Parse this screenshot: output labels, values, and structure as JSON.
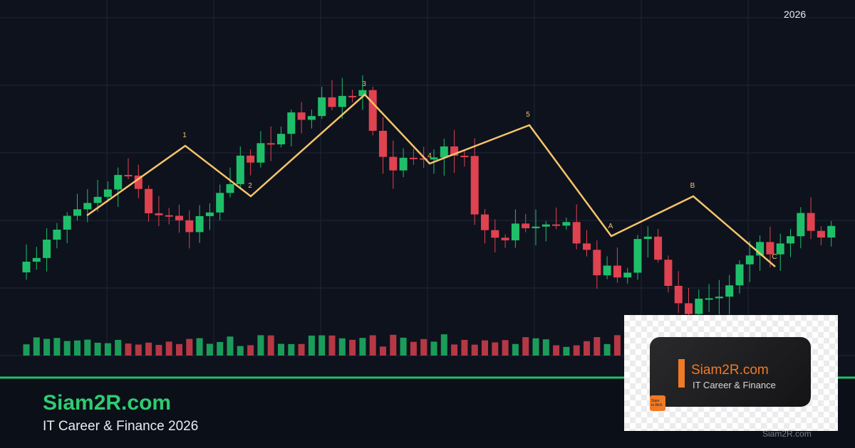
{
  "header": {
    "year": "2026"
  },
  "wave_labels": [
    "1",
    "2",
    "3",
    "4",
    "5",
    "A",
    "B",
    "C"
  ],
  "brand": {
    "title": "Siam2R.com",
    "subtitle": "IT Career & Finance 2026"
  },
  "logo_card": {
    "title": "Siam2R.com",
    "subtitle": "IT Career & Finance",
    "badge": [
      "Siam",
      "to Rich"
    ]
  },
  "watermark": "Siam2R.com"
}
